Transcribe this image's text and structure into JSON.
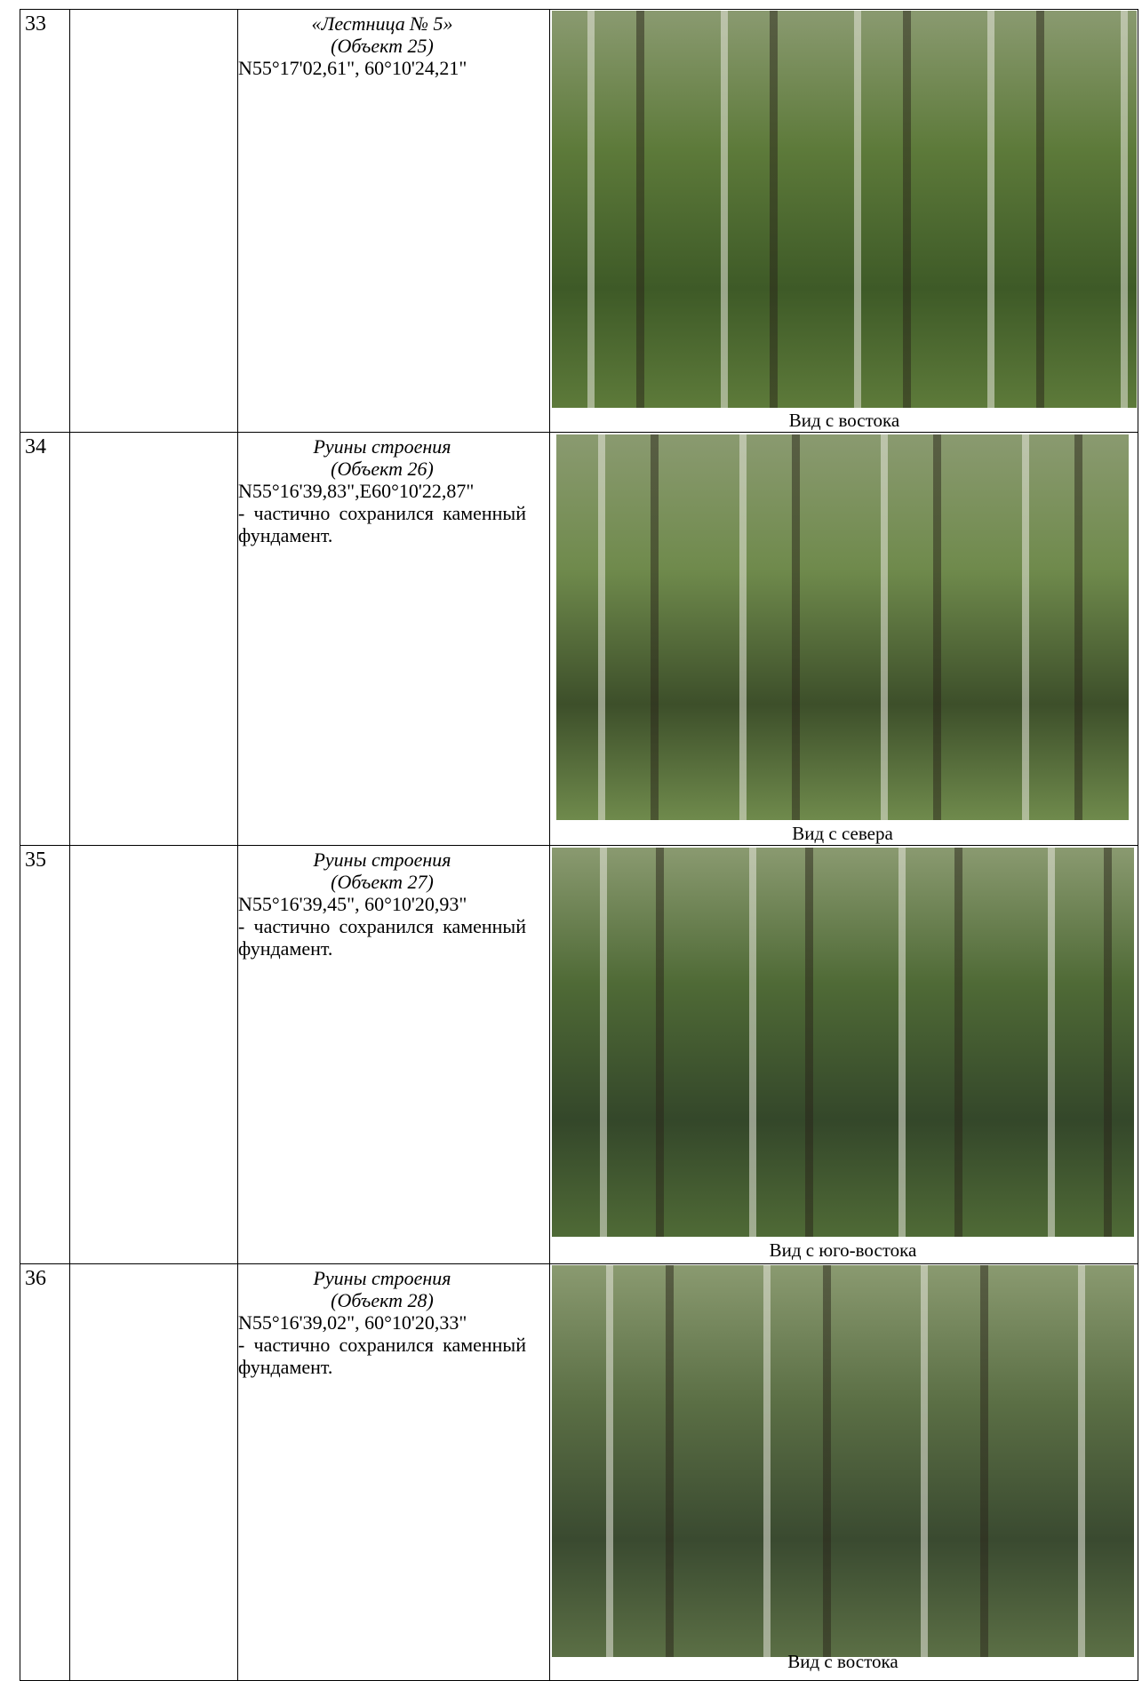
{
  "rows": [
    {
      "number": "33",
      "title": "«Лестница № 5»",
      "object": "(Объект 25)",
      "coords": "N55°17'02,61\", 60°10'24,21\"",
      "caption": "Вид с востока"
    },
    {
      "number": "34",
      "title": "Руины строения",
      "object": "(Объект 26)",
      "coords": "N55°16'39,83\",E60°10'22,87\"",
      "note": "- частично сохранился каменный фундамент.",
      "caption": "Вид с севера"
    },
    {
      "number": "35",
      "title": "Руины строения",
      "object": "(Объект 27)",
      "coords": "N55°16'39,45\", 60°10'20,93\"",
      "note": "- частично сохранился каменный фундамент.",
      "caption": "Вид с юго-востока"
    },
    {
      "number": "36",
      "title": "Руины строения",
      "object": "(Объект 28)",
      "coords": "N55°16'39,02\", 60°10'20,33\"",
      "note": "- частично сохранился каменный фундамент.",
      "caption": "Вид с востока"
    }
  ]
}
